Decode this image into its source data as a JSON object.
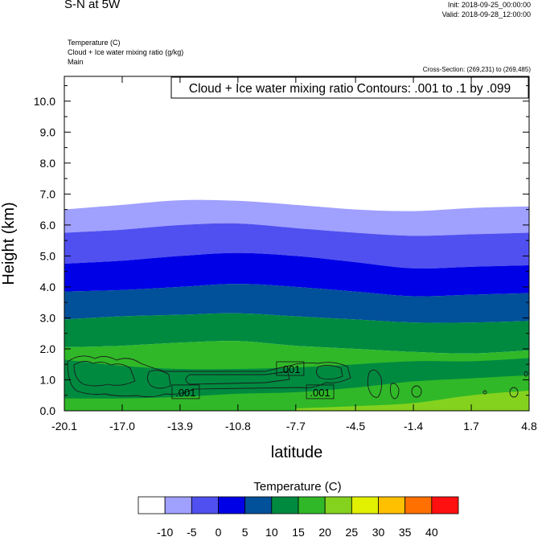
{
  "header": {
    "title": "S-N at 5W",
    "init": "Init: 2018-09-25_00:00:00",
    "valid": "Valid: 2018-09-28_12:00:00",
    "fields": [
      "Temperature   (C)",
      "Cloud + Ice water mixing ratio   (g/kg)",
      "Main"
    ],
    "cross_section": "Cross-Section: (269,231) to (269,485)"
  },
  "chart_data": {
    "type": "heatmap",
    "title": "",
    "xlabel": "latitude",
    "ylabel": "Height (km)",
    "xlim": [
      -20.1,
      4.8
    ],
    "ylim": [
      0.0,
      10.8
    ],
    "x_ticks": [
      -20.1,
      -17.0,
      -13.9,
      -10.8,
      -7.7,
      -4.5,
      -1.4,
      1.7,
      4.8
    ],
    "x_tick_labels": [
      "-20.1",
      "-17.0",
      "-13.9",
      "-10.8",
      "-7.7",
      "-4.5",
      "-1.4",
      "1.7",
      "4.8"
    ],
    "y_ticks": [
      0.0,
      1.0,
      2.0,
      3.0,
      4.0,
      5.0,
      6.0,
      7.0,
      8.0,
      9.0,
      10.0
    ],
    "y_tick_labels": [
      "0.0",
      "1.0",
      "2.0",
      "3.0",
      "4.0",
      "5.0",
      "6.0",
      "7.0",
      "8.0",
      "9.0",
      "10.0"
    ],
    "contour_caption": "Cloud + Ice water mixing ratio Contours: .001 to .1 by .099",
    "contour_labels": [
      {
        "text": ".001",
        "lat": -13.6,
        "h": 0.6
      },
      {
        "text": ".001",
        "lat": -8.0,
        "h": 1.35
      },
      {
        "text": ".001",
        "lat": -6.4,
        "h": 0.6
      }
    ],
    "colorbar": {
      "title": "Temperature  (C)",
      "labels": [
        "-10",
        "-5",
        "0",
        "5",
        "10",
        "15",
        "20",
        "25",
        "30",
        "35",
        "40"
      ],
      "colors": [
        "#ffffff",
        "#a0a0ff",
        "#5050f0",
        "#0000e6",
        "#00509a",
        "#008a40",
        "#30b828",
        "#84d21e",
        "#e0f000",
        "#ffc000",
        "#ff7000",
        "#ff1010"
      ]
    },
    "temperature_bands": [
      {
        "label": "-5 to 0",
        "color": "#a0a0ff",
        "lower": [
          [
            -20.1,
            5.75
          ],
          [
            -17.0,
            5.85
          ],
          [
            -13.9,
            6.0
          ],
          [
            -10.8,
            6.05
          ],
          [
            -7.7,
            5.9
          ],
          [
            -4.5,
            5.75
          ],
          [
            -1.4,
            5.65
          ],
          [
            1.7,
            5.7
          ],
          [
            4.8,
            5.75
          ]
        ],
        "upper": [
          [
            -20.1,
            6.5
          ],
          [
            -17.0,
            6.65
          ],
          [
            -13.9,
            6.8
          ],
          [
            -10.8,
            6.78
          ],
          [
            -7.7,
            6.65
          ],
          [
            -4.5,
            6.5
          ],
          [
            -1.4,
            6.45
          ],
          [
            1.7,
            6.55
          ],
          [
            4.8,
            6.6
          ]
        ]
      },
      {
        "label": "0 to 5",
        "color": "#5050f0",
        "lower": [
          [
            -20.1,
            4.75
          ],
          [
            -17.0,
            4.85
          ],
          [
            -13.9,
            5.0
          ],
          [
            -10.8,
            5.1
          ],
          [
            -7.7,
            5.0
          ],
          [
            -4.5,
            4.8
          ],
          [
            -1.4,
            4.6
          ],
          [
            1.7,
            4.65
          ],
          [
            4.8,
            4.7
          ]
        ],
        "upper": [
          [
            -20.1,
            5.75
          ],
          [
            -17.0,
            5.85
          ],
          [
            -13.9,
            6.0
          ],
          [
            -10.8,
            6.05
          ],
          [
            -7.7,
            5.9
          ],
          [
            -4.5,
            5.75
          ],
          [
            -1.4,
            5.65
          ],
          [
            1.7,
            5.7
          ],
          [
            4.8,
            5.75
          ]
        ]
      },
      {
        "label": "5 to 10",
        "color": "#0000e6",
        "lower": [
          [
            -20.1,
            3.85
          ],
          [
            -17.0,
            3.9
          ],
          [
            -13.9,
            4.0
          ],
          [
            -10.8,
            4.1
          ],
          [
            -7.7,
            4.0
          ],
          [
            -4.5,
            3.85
          ],
          [
            -1.4,
            3.7
          ],
          [
            1.7,
            3.75
          ],
          [
            4.8,
            3.8
          ]
        ],
        "upper": [
          [
            -20.1,
            4.75
          ],
          [
            -17.0,
            4.85
          ],
          [
            -13.9,
            5.0
          ],
          [
            -10.8,
            5.1
          ],
          [
            -7.7,
            5.0
          ],
          [
            -4.5,
            4.8
          ],
          [
            -1.4,
            4.6
          ],
          [
            1.7,
            4.65
          ],
          [
            4.8,
            4.7
          ]
        ]
      },
      {
        "label": "10 to 15",
        "color": "#00509a",
        "lower": [
          [
            -20.1,
            2.95
          ],
          [
            -17.0,
            3.05
          ],
          [
            -13.9,
            3.1
          ],
          [
            -10.8,
            3.15
          ],
          [
            -7.7,
            3.05
          ],
          [
            -4.5,
            2.95
          ],
          [
            -1.4,
            2.85
          ],
          [
            1.7,
            2.85
          ],
          [
            4.8,
            2.9
          ]
        ],
        "upper": [
          [
            -20.1,
            3.85
          ],
          [
            -17.0,
            3.9
          ],
          [
            -13.9,
            4.0
          ],
          [
            -10.8,
            4.1
          ],
          [
            -7.7,
            4.0
          ],
          [
            -4.5,
            3.85
          ],
          [
            -1.4,
            3.7
          ],
          [
            1.7,
            3.75
          ],
          [
            4.8,
            3.8
          ]
        ]
      },
      {
        "label": "15 to 20",
        "color": "#008a40",
        "lower": [
          [
            -20.1,
            2.05
          ],
          [
            -17.0,
            2.1
          ],
          [
            -13.9,
            2.2
          ],
          [
            -10.8,
            2.25
          ],
          [
            -7.7,
            2.1
          ],
          [
            -4.5,
            2.0
          ],
          [
            -1.4,
            1.9
          ],
          [
            1.7,
            1.85
          ],
          [
            4.8,
            1.95
          ]
        ],
        "upper": [
          [
            -20.1,
            2.95
          ],
          [
            -17.0,
            3.05
          ],
          [
            -13.9,
            3.1
          ],
          [
            -10.8,
            3.15
          ],
          [
            -7.7,
            3.05
          ],
          [
            -4.5,
            2.95
          ],
          [
            -1.4,
            2.85
          ],
          [
            1.7,
            2.85
          ],
          [
            4.8,
            2.9
          ]
        ]
      },
      {
        "label": "20 to 25",
        "color": "#30b828",
        "lower": [
          [
            -20.1,
            0.0
          ],
          [
            -17.0,
            0.0
          ],
          [
            -13.9,
            0.0
          ],
          [
            -10.8,
            0.0
          ],
          [
            -7.7,
            0.0
          ],
          [
            -4.5,
            0.0
          ],
          [
            -1.4,
            0.0
          ],
          [
            1.7,
            0.0
          ],
          [
            4.8,
            0.0
          ]
        ],
        "upper": [
          [
            -20.1,
            2.05
          ],
          [
            -17.0,
            2.1
          ],
          [
            -13.9,
            2.2
          ],
          [
            -10.8,
            2.25
          ],
          [
            -7.7,
            2.1
          ],
          [
            -4.5,
            2.0
          ],
          [
            -1.4,
            1.9
          ],
          [
            1.7,
            1.85
          ],
          [
            4.8,
            1.95
          ]
        ]
      },
      {
        "label": "15 to 20",
        "color": "#008a40",
        "lower": [
          [
            -20.1,
            0.4
          ],
          [
            -17.0,
            0.4
          ],
          [
            -13.9,
            0.45
          ],
          [
            -10.8,
            0.55
          ],
          [
            -7.7,
            0.6
          ],
          [
            -4.5,
            0.75
          ],
          [
            -1.4,
            0.95
          ],
          [
            1.7,
            1.05
          ],
          [
            4.8,
            1.15
          ]
        ],
        "upper": [
          [
            -20.1,
            1.65
          ],
          [
            -17.0,
            1.45
          ],
          [
            -13.9,
            1.35
          ],
          [
            -10.8,
            1.35
          ],
          [
            -7.7,
            1.4
          ],
          [
            -4.5,
            1.5
          ],
          [
            -1.4,
            1.6
          ],
          [
            1.7,
            1.6
          ],
          [
            4.8,
            1.7
          ]
        ]
      },
      {
        "label": "25 to 30",
        "color": "#84d21e",
        "lower": [
          [
            -7.7,
            0.0
          ],
          [
            -4.5,
            0.0
          ],
          [
            -1.4,
            0.0
          ],
          [
            1.7,
            0.0
          ],
          [
            4.8,
            0.0
          ]
        ],
        "upper": [
          [
            -7.7,
            0.08
          ],
          [
            -4.5,
            0.15
          ],
          [
            -1.4,
            0.25
          ],
          [
            1.7,
            0.5
          ],
          [
            4.8,
            0.65
          ]
        ]
      }
    ]
  }
}
